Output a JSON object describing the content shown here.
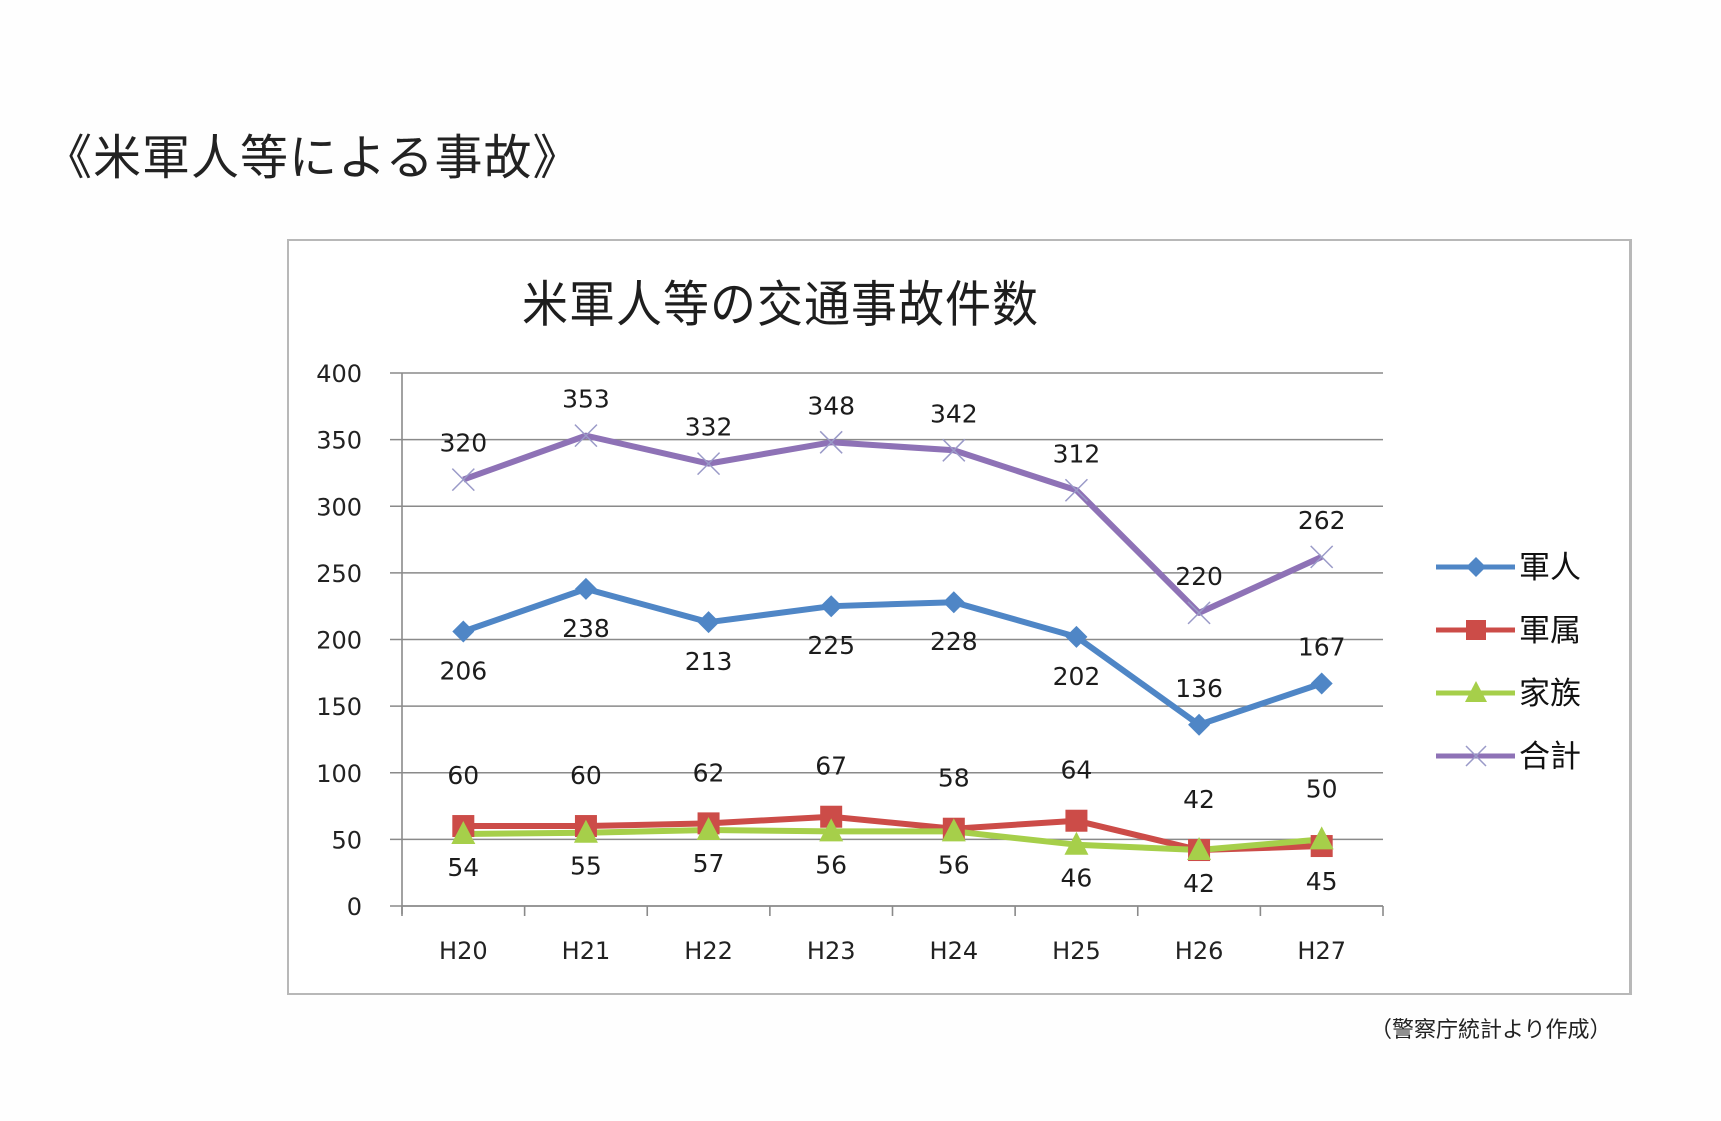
{
  "page": {
    "heading": "《米軍人等による事故》",
    "source_note": "（警察庁統計より作成）"
  },
  "chart_data": {
    "type": "line",
    "title": "米軍人等の交通事故件数",
    "xlabel": "",
    "ylabel": "",
    "categories": [
      "H20",
      "H21",
      "H22",
      "H23",
      "H24",
      "H25",
      "H26",
      "H27"
    ],
    "ylim": [
      0,
      400
    ],
    "yticks": [
      0,
      50,
      100,
      150,
      200,
      250,
      300,
      350,
      400
    ],
    "grid": true,
    "legend_position": "right",
    "series": [
      {
        "name": "軍人",
        "marker": "diamond",
        "color": "#4f86c6",
        "values": [
          206,
          238,
          213,
          225,
          228,
          202,
          136,
          167
        ],
        "label_position": [
          "below",
          "below",
          "below",
          "below",
          "below",
          "below",
          "above",
          "above"
        ]
      },
      {
        "name": "軍属",
        "marker": "square",
        "color": "#cc4c48",
        "values": [
          60,
          60,
          62,
          67,
          58,
          64,
          42,
          45
        ],
        "label_position": [
          "above",
          "above",
          "above",
          "above",
          "above",
          "above",
          "above",
          "below"
        ]
      },
      {
        "name": "家族",
        "marker": "triangle",
        "color": "#a6cf4a",
        "values": [
          54,
          55,
          57,
          56,
          56,
          46,
          42,
          50
        ],
        "label_position": [
          "below",
          "below",
          "below",
          "below",
          "below",
          "below",
          "below",
          "above"
        ]
      },
      {
        "name": "合計",
        "marker": "x",
        "color": "#8e72b6",
        "values": [
          320,
          353,
          332,
          348,
          342,
          312,
          220,
          262
        ],
        "label_position": [
          "above",
          "above",
          "above",
          "above",
          "above",
          "above",
          "above",
          "above"
        ]
      }
    ]
  }
}
